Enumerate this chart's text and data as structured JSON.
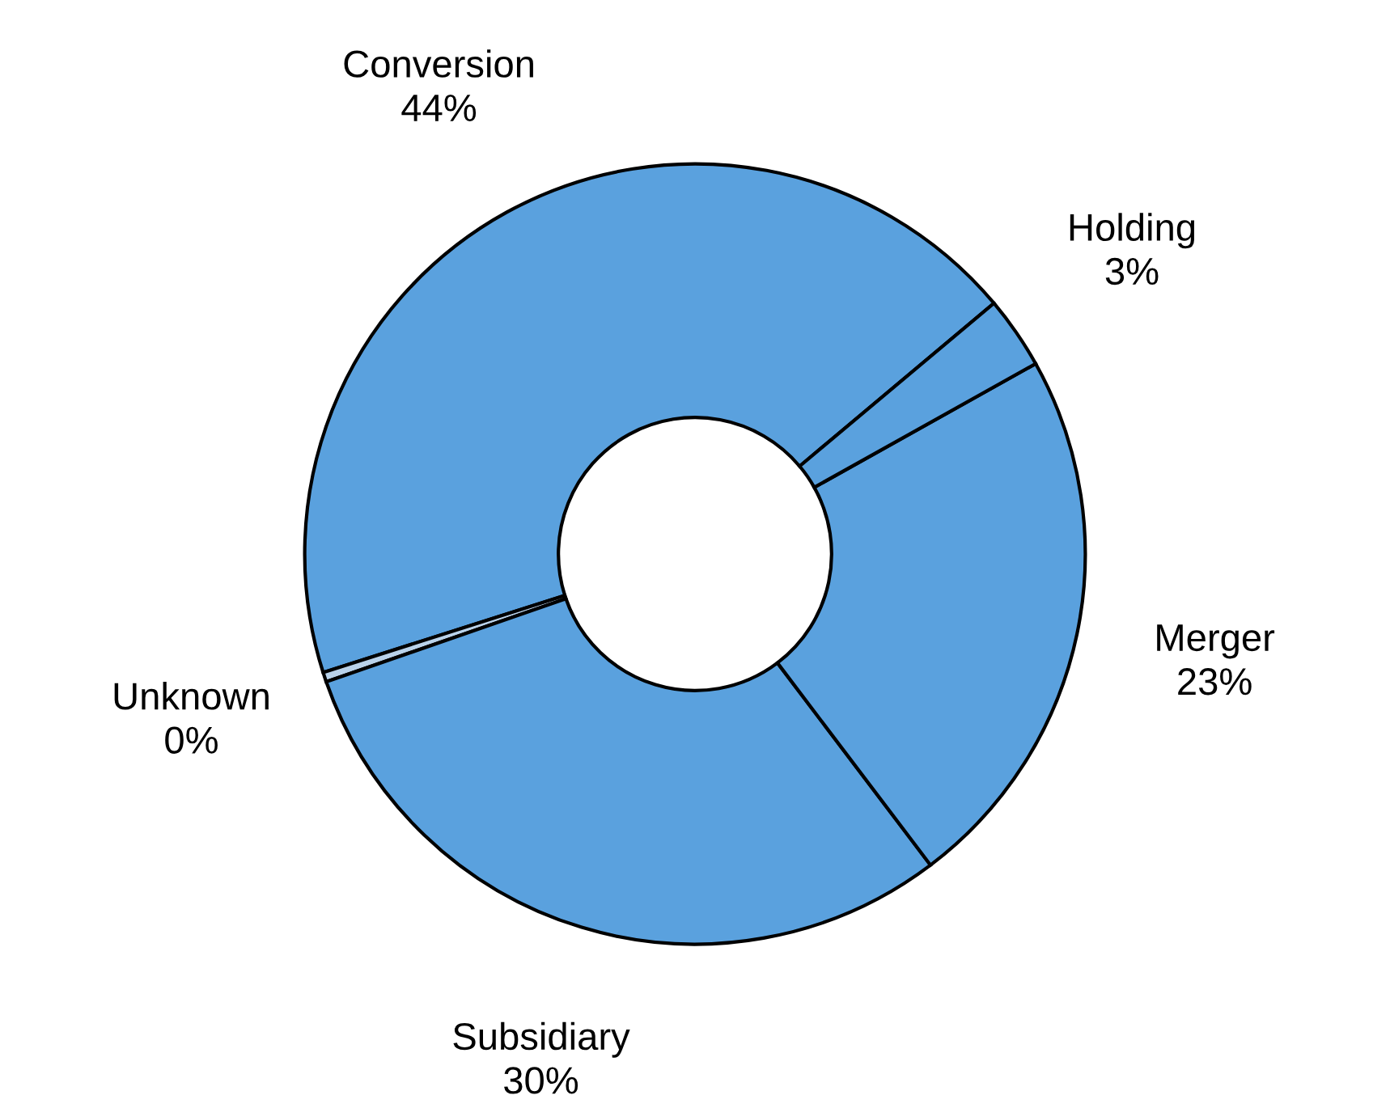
{
  "chart_data": {
    "type": "donut",
    "categories": [
      "Conversion",
      "Unknown",
      "Subsidiary",
      "Merger",
      "Holding"
    ],
    "values": [
      43.8,
      0.4,
      30,
      22.8,
      3
    ],
    "colors": [
      "#5aa1de",
      "#b9d2ea",
      "#5aa1de",
      "#5aa1de",
      "#5aa1de"
    ],
    "value_labels": [
      "44%",
      "0%",
      "30%",
      "23%",
      "3%"
    ],
    "legend": false
  }
}
